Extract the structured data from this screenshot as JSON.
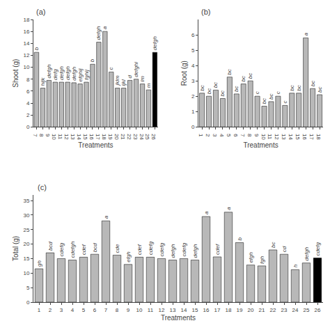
{
  "chart_data": [
    {
      "type": "bar",
      "title": "(a)",
      "categories": [
        7,
        8,
        9,
        10,
        11,
        12,
        13,
        14,
        15,
        16,
        17,
        18,
        19,
        20,
        21,
        22,
        23,
        24,
        25,
        26
      ],
      "values": [
        12.5,
        6.5,
        7.8,
        7.5,
        7.5,
        7.5,
        7.4,
        7.2,
        7.5,
        10.5,
        14.2,
        16.0,
        9.2,
        6.5,
        6.5,
        7.8,
        8.0,
        7.2,
        6.2,
        12.5
      ],
      "annotations": [
        "b",
        "hijk",
        "defgh",
        "defg",
        "defgh",
        "defgh",
        "defgh",
        "efghij",
        "fghij",
        "b",
        "defgh",
        "a",
        "c",
        "jklm",
        "ijkl",
        "d",
        "defghi",
        "lm",
        "m",
        "defgh"
      ],
      "colors": [
        "#b8b8b8",
        "#b8b8b8",
        "#b8b8b8",
        "#b8b8b8",
        "#b8b8b8",
        "#b8b8b8",
        "#b8b8b8",
        "#b8b8b8",
        "#b8b8b8",
        "#b8b8b8",
        "#b8b8b8",
        "#b8b8b8",
        "#b8b8b8",
        "#b8b8b8",
        "#b8b8b8",
        "#b8b8b8",
        "#b8b8b8",
        "#b8b8b8",
        "#b8b8b8",
        "#000000"
      ],
      "xlabel": "Treatments",
      "ylabel": "Shoot (g)",
      "ylim": [
        0,
        18
      ],
      "yticks": [
        0,
        2,
        4,
        6,
        8,
        10,
        12,
        14,
        16,
        18
      ],
      "grid": false
    },
    {
      "type": "bar",
      "title": "(b)",
      "categories": [
        1,
        2,
        3,
        4,
        5,
        6,
        7,
        8,
        9,
        10,
        11,
        12,
        13,
        14,
        15,
        16,
        17,
        18
      ],
      "values": [
        2.2,
        2.0,
        2.4,
        1.85,
        3.25,
        2.15,
        2.8,
        3.0,
        2.0,
        1.35,
        1.65,
        2.0,
        1.4,
        2.2,
        2.2,
        5.8,
        2.5,
        2.1
      ],
      "annotations": [
        "bc",
        "bc",
        "bc",
        "bc",
        "bc",
        "bc",
        "bc",
        "bc",
        "c",
        "bc",
        "bc",
        "c",
        "c",
        "bc",
        "bc",
        "a",
        "bc",
        "bc"
      ],
      "colors": [
        "#b8b8b8",
        "#b8b8b8",
        "#b8b8b8",
        "#b8b8b8",
        "#b8b8b8",
        "#b8b8b8",
        "#b8b8b8",
        "#b8b8b8",
        "#b8b8b8",
        "#b8b8b8",
        "#b8b8b8",
        "#b8b8b8",
        "#b8b8b8",
        "#b8b8b8",
        "#b8b8b8",
        "#b8b8b8",
        "#b8b8b8",
        "#b8b8b8"
      ],
      "xlabel": "Treatments",
      "ylabel": "Root (g)",
      "ylim": [
        0,
        7
      ],
      "yticks": [
        0,
        1,
        2,
        3,
        4,
        5,
        6
      ],
      "grid": false
    },
    {
      "type": "bar",
      "title": "(c)",
      "categories": [
        1,
        2,
        3,
        4,
        5,
        6,
        7,
        8,
        9,
        10,
        11,
        12,
        13,
        14,
        15,
        16,
        17,
        18,
        19,
        20,
        21,
        22,
        23,
        24,
        25,
        26
      ],
      "values": [
        11.5,
        17.0,
        15.0,
        14.5,
        15.5,
        16.5,
        28.0,
        16.2,
        13.0,
        15.5,
        15.5,
        15.0,
        14.5,
        15.0,
        14.5,
        29.5,
        15.6,
        31.0,
        20.5,
        12.8,
        12.5,
        18.0,
        16.5,
        11.2,
        13.5,
        15.2
      ],
      "annotations": [
        "gh",
        "bcd",
        "cdefg",
        "cdefgh",
        "cdef",
        "bcd",
        "a",
        "cde",
        "efgh",
        "cdef",
        "cdefg",
        "cdefg",
        "defgh",
        "cdefg",
        "defgh",
        "a",
        "cdef",
        "a",
        "b",
        "efgh",
        "fgh",
        "bc",
        "cd",
        "h",
        "defgh",
        "cdefg"
      ],
      "colors": [
        "#b8b8b8",
        "#b8b8b8",
        "#b8b8b8",
        "#b8b8b8",
        "#b8b8b8",
        "#b8b8b8",
        "#b8b8b8",
        "#b8b8b8",
        "#b8b8b8",
        "#b8b8b8",
        "#b8b8b8",
        "#b8b8b8",
        "#b8b8b8",
        "#b8b8b8",
        "#b8b8b8",
        "#b8b8b8",
        "#b8b8b8",
        "#b8b8b8",
        "#b8b8b8",
        "#b8b8b8",
        "#b8b8b8",
        "#b8b8b8",
        "#b8b8b8",
        "#b8b8b8",
        "#b8b8b8",
        "#000000"
      ],
      "xlabel": "Treatments",
      "ylabel": "Total (g)",
      "ylim": [
        0,
        37
      ],
      "yticks": [
        0,
        5,
        10,
        15,
        20,
        25,
        30,
        35
      ],
      "grid": false
    }
  ]
}
